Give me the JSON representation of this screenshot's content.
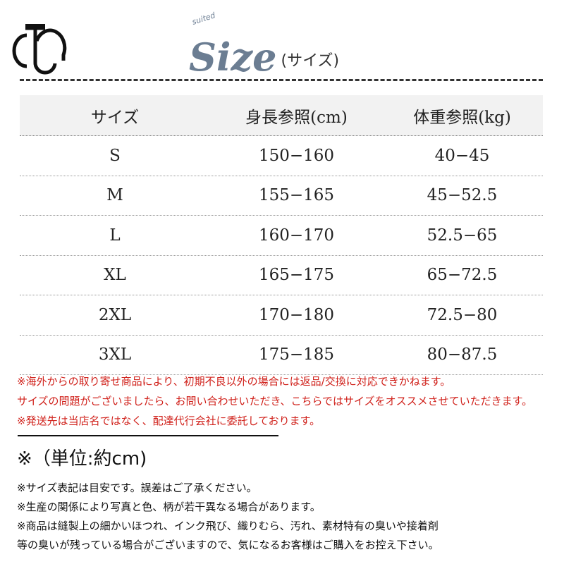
{
  "header": {
    "title": "Size",
    "subtitle": "(サイズ)",
    "tag": "suited",
    "brand_color": "#6b7d92"
  },
  "logo": {
    "letters": "JC"
  },
  "table": {
    "columns": [
      "サイズ",
      "身長参照(cm)",
      "体重参照(kg)"
    ],
    "rows": [
      [
        "S",
        "150−160",
        "40−45"
      ],
      [
        "M",
        "155−165",
        "45−52.5"
      ],
      [
        "L",
        "160−170",
        "52.5−65"
      ],
      [
        "XL",
        "165−175",
        "65−72.5"
      ],
      [
        "2XL",
        "170−180",
        "72.5−80"
      ],
      [
        "3XL",
        "175−185",
        "80−87.5"
      ]
    ]
  },
  "warnings": [
    "※海外からの取り寄せ商品により、初期不良以外の場合には返品/交換に対応できかねます。",
    "サイズの問題がございましたら、お問い合わせいただき、こちらではサイズをオススメさせていただきます。",
    "※発送先は当店名ではなく、配達代行会社に委託しております。"
  ],
  "warning_color": "#d0201a",
  "unit_note": "※（単位:約cm)",
  "notes": [
    "※サイズ表記は目安です。誤差はご了承ください。",
    "※生産の関係により写真と色、柄が若干異なる場合があります。",
    "※商品は縫製上の細かいほつれ、インク飛び、織りむら、汚れ、素材特有の臭いや接着剤",
    "等の臭いが残っている場合がございますので、気になるお客様はご購入をお控え下さい。"
  ]
}
